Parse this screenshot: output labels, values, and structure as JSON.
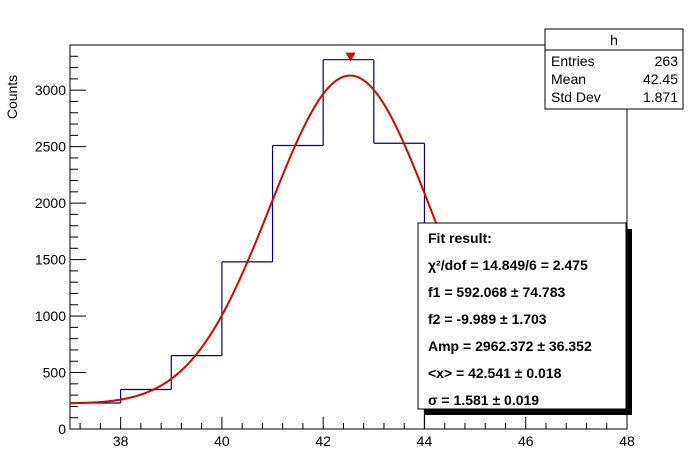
{
  "chart_data": {
    "type": "histogram",
    "ylabel": "Counts",
    "xlim": [
      37,
      48
    ],
    "ylim": [
      0,
      3400
    ],
    "x_ticks": [
      38,
      40,
      42,
      44,
      46,
      48
    ],
    "y_ticks": [
      0,
      500,
      1000,
      1500,
      2000,
      2500,
      3000
    ],
    "bins": [
      {
        "x0": 37,
        "x1": 38,
        "value": 230
      },
      {
        "x0": 38,
        "x1": 39,
        "value": 350
      },
      {
        "x0": 39,
        "x1": 40,
        "value": 650
      },
      {
        "x0": 40,
        "x1": 41,
        "value": 1480
      },
      {
        "x0": 41,
        "x1": 42,
        "value": 2510
      },
      {
        "x0": 42,
        "x1": 43,
        "value": 3270
      },
      {
        "x0": 43,
        "x1": 44,
        "value": 2530
      }
    ],
    "fit": {
      "f1": 592.068,
      "f2": -9.989,
      "amp": 2962.372,
      "mean": 42.541,
      "sigma": 1.581,
      "peak_marker_x": 42.541,
      "color": "#e00000"
    },
    "histogram_color": "#000080"
  },
  "stats_box": {
    "title": "h",
    "rows": [
      {
        "label": "Entries",
        "value": "263"
      },
      {
        "label": "Mean",
        "value": "42.45"
      },
      {
        "label": "Std Dev",
        "value": "1.871"
      }
    ]
  },
  "fit_box": {
    "lines": [
      "Fit result:",
      "χ²/dof = 14.849/6 = 2.475",
      "f1 = 592.068 ± 74.783",
      "f2 = -9.989 ± 1.703",
      "Amp = 2962.372 ± 36.352",
      "<x> = 42.541 ± 0.018",
      "σ = 1.581 ± 0.019"
    ]
  }
}
